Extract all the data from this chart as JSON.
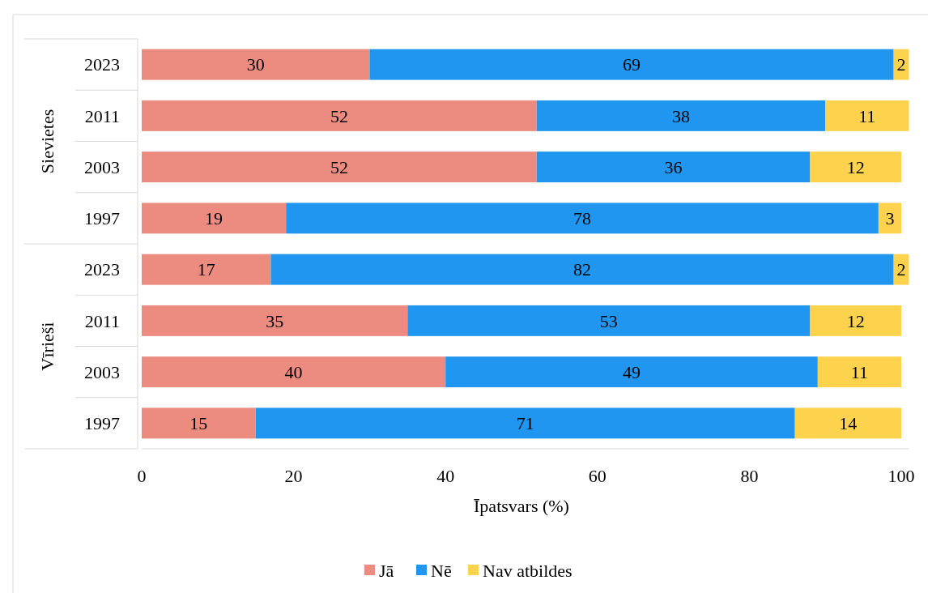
{
  "chart_data": {
    "type": "bar",
    "orientation": "horizontal",
    "stacked": true,
    "xlabel": "Īpatsvars (%)",
    "categories": [
      "2023",
      "2011",
      "2003",
      "1997",
      "2023",
      "2011",
      "2003",
      "1997"
    ],
    "annotations": [
      "Sievietes",
      "Vīrieši"
    ],
    "series": [
      {
        "name": "Jā",
        "color": "#ec8b7f",
        "values": [
          30,
          52,
          52,
          19,
          17,
          35,
          40,
          15
        ]
      },
      {
        "name": "Nē",
        "color": "#2196f0",
        "values": [
          69,
          38,
          36,
          78,
          82,
          53,
          49,
          71
        ]
      },
      {
        "name": "Nav atbildes",
        "color": "#fdd34e",
        "values": [
          2,
          11,
          12,
          3,
          2,
          12,
          11,
          14
        ]
      }
    ],
    "xlim": [
      0,
      101
    ],
    "xticks": [
      0,
      20,
      40,
      60,
      80,
      100
    ],
    "data_labels": true,
    "legend": "bottom",
    "grid": false
  }
}
